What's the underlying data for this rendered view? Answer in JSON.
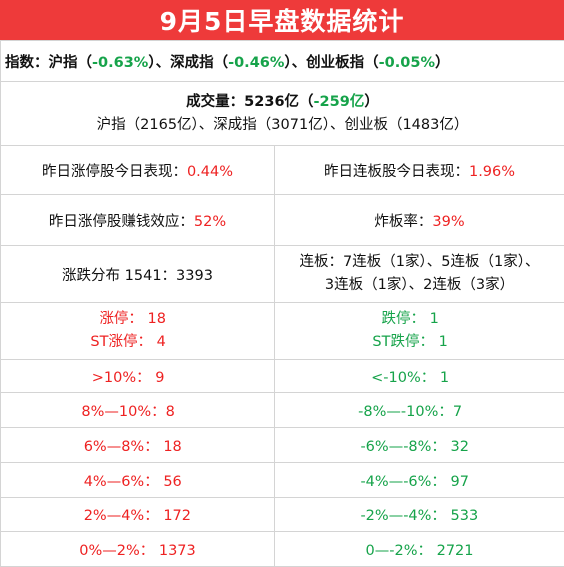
{
  "title": "9月5日早盘数据统计",
  "indices": {
    "label": "指数：",
    "sh_label": "沪指（",
    "sh_value": "-0.63%",
    "sep1": "）、深成指（",
    "sz_value": "-0.46%",
    "sep2": "）、创业板指（",
    "cy_value": "-0.05%",
    "end": "）"
  },
  "volume": {
    "label": "成交量：5236亿（",
    "change": "-259亿",
    "end": "）",
    "detail": "沪指（2165亿）、深成指（3071亿）、创业板（1483亿）"
  },
  "stats": {
    "limit_up_perf_label": "昨日涨停股今日表现：",
    "limit_up_perf_value": "0.44%",
    "consecutive_perf_label": "昨日连板股今日表现：",
    "consecutive_perf_value": "1.96%",
    "profit_effect_label": "昨日涨停股赚钱效应：",
    "profit_effect_value": "52%",
    "bomb_rate_label": "炸板率：",
    "bomb_rate_value": "39%",
    "distribution": "涨跌分布 1541：3393",
    "consecutive_line1": "连板：7连板（1家）、5连板（1家）、",
    "consecutive_line2": "3连板（1家）、2连板（3家）"
  },
  "limits": {
    "up_label": "涨停：",
    "up_value": "18",
    "st_up_label": "ST涨停：",
    "st_up_value": "4",
    "down_label": "跌停：",
    "down_value": "1",
    "st_down_label": "ST跌停：",
    "st_down_value": "1"
  },
  "ranges": [
    {
      "up_label": ">10%：",
      "up_value": "9",
      "down_label": "<-10%：",
      "down_value": "1"
    },
    {
      "up_label": "8%—10%：",
      "up_value": "8",
      "down_label": "-8%—-10%：",
      "down_value": "7"
    },
    {
      "up_label": "6%—8%：",
      "up_value": "18",
      "down_label": "-6%—-8%：",
      "down_value": "32"
    },
    {
      "up_label": "4%—6%：",
      "up_value": "56",
      "down_label": "-4%—-6%：",
      "down_value": "97"
    },
    {
      "up_label": "2%—4%：",
      "up_value": "172",
      "down_label": "-2%—-4%：",
      "down_value": "533"
    },
    {
      "up_label": "0%—2%：",
      "up_value": "1373",
      "down_label": "0—-2%：",
      "down_value": "2721"
    }
  ],
  "colors": {
    "title_bg": "#ee3a3a",
    "up": "#ee2222",
    "down": "#16a34a",
    "border": "#d4d4d4"
  }
}
